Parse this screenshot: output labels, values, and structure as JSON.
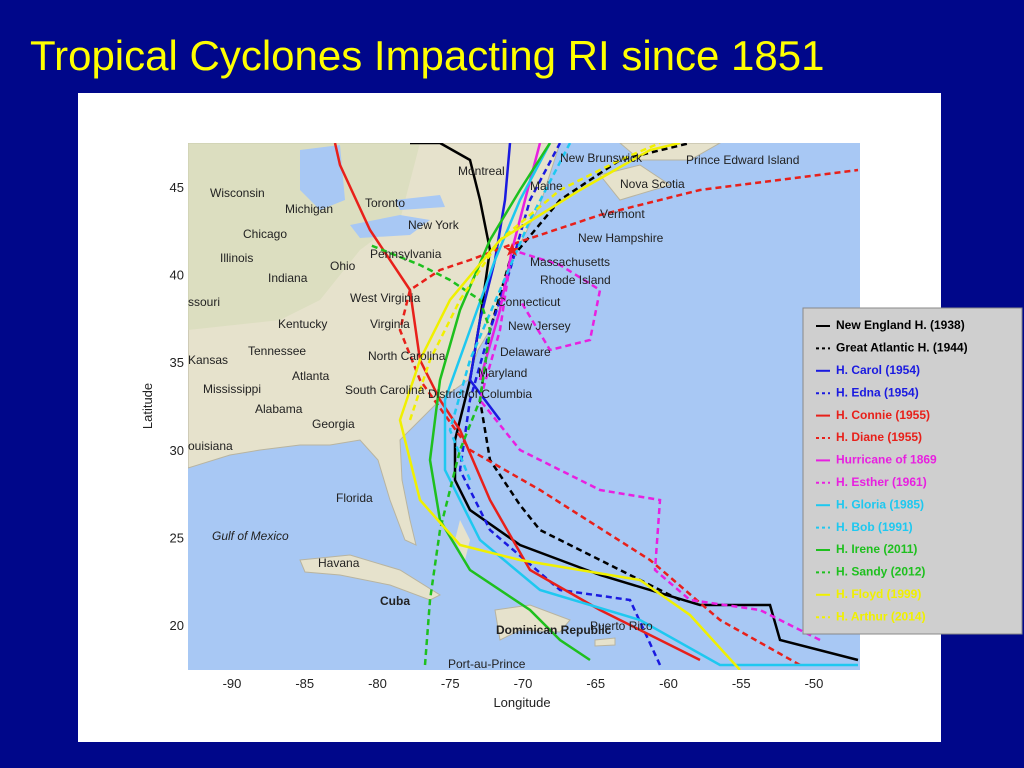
{
  "slide": {
    "title": "Tropical Cyclones Impacting RI since 1851"
  },
  "map": {
    "x_label": "Longitude",
    "y_label": "Latitude",
    "xticks": [
      -90,
      -85,
      -80,
      -75,
      -70,
      -65,
      -60,
      -55,
      -50
    ],
    "yticks": [
      20,
      25,
      30,
      35,
      40,
      45
    ],
    "places": [
      "Wisconsin",
      "Michigan",
      "Toronto",
      "Montreal",
      "Chicago",
      "New York",
      "Illinois",
      "Indiana",
      "Ohio",
      "Pennsylvania",
      "West Virginia",
      "Kentucky",
      "Virginia",
      "Tennessee",
      "North Carolina",
      "Atlanta",
      "South Carolina",
      "Mississippi",
      "Alabama",
      "Georgia",
      "Florida",
      "Gulf of Mexico",
      "Havana",
      "Cuba",
      "Dominican Republic",
      "Puerto Rico",
      "Port-au-Prince",
      "New Brunswick",
      "Prince Edward Island",
      "Nova Scotia",
      "Maine",
      "Vermont",
      "New Hampshire",
      "Massachusetts",
      "Rhode Island",
      "Connecticut",
      "New Jersey",
      "Delaware",
      "Maryland",
      "District of Columbia",
      "ssouri",
      "Kansas",
      "ouisiana"
    ]
  },
  "legend": [
    {
      "name": "New England H. (1938)",
      "color": "#000000",
      "dashed": false
    },
    {
      "name": "Great Atlantic H. (1944)",
      "color": "#000000",
      "dashed": true
    },
    {
      "name": "H. Carol (1954)",
      "color": "#1a1ae0",
      "dashed": false
    },
    {
      "name": "H. Edna (1954)",
      "color": "#1a1ae0",
      "dashed": true
    },
    {
      "name": "H. Connie (1955)",
      "color": "#e8201a",
      "dashed": false
    },
    {
      "name": "H. Diane (1955)",
      "color": "#e8201a",
      "dashed": true
    },
    {
      "name": "Hurricane of 1869",
      "color": "#e820e0",
      "dashed": false
    },
    {
      "name": "H. Esther (1961)",
      "color": "#e820e0",
      "dashed": true
    },
    {
      "name": "H. Gloria (1985)",
      "color": "#1ec8f0",
      "dashed": false
    },
    {
      "name": "H. Bob (1991)",
      "color": "#1ec8f0",
      "dashed": true
    },
    {
      "name": "H. Irene (2011)",
      "color": "#1ec01e",
      "dashed": false
    },
    {
      "name": "H. Sandy (2012)",
      "color": "#1ec01e",
      "dashed": true
    },
    {
      "name": "H. Floyd (1999)",
      "color": "#f0f000",
      "dashed": false
    },
    {
      "name": "H.  Arthur (2014)",
      "color": "#f0f000",
      "dashed": true
    }
  ]
}
